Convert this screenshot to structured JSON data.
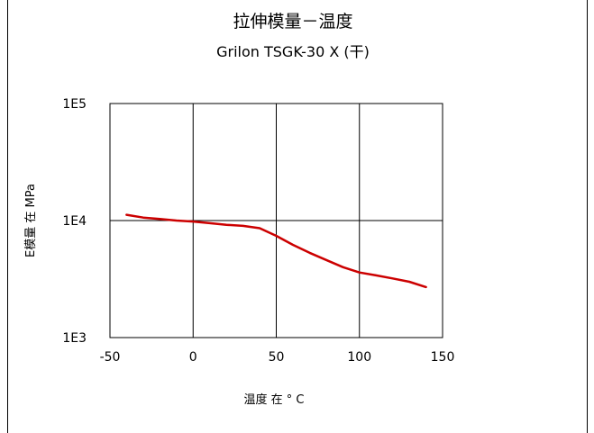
{
  "chart_data": {
    "type": "line",
    "title": "拉伸模量－温度",
    "subtitle": "Grilon TSGK-30 X (干)",
    "xlabel": "温度 在 ° C",
    "ylabel": "E模量 在  MPa",
    "xlim": [
      -50,
      150
    ],
    "ylim": [
      1000,
      100000
    ],
    "yscale": "log",
    "grid": true,
    "x_ticks": [
      {
        "value": -50,
        "label": "-50"
      },
      {
        "value": 0,
        "label": "0"
      },
      {
        "value": 50,
        "label": "50"
      },
      {
        "value": 100,
        "label": "100"
      },
      {
        "value": 150,
        "label": "150"
      }
    ],
    "y_ticks": [
      {
        "value": 1000,
        "label": "1E3"
      },
      {
        "value": 10000,
        "label": "1E4"
      },
      {
        "value": 100000,
        "label": "1E5"
      }
    ],
    "series": [
      {
        "color": "#cc0000",
        "x": [
          -40,
          -30,
          -20,
          -10,
          0,
          10,
          20,
          30,
          40,
          50,
          60,
          70,
          80,
          90,
          100,
          110,
          120,
          130,
          140
        ],
        "y": [
          11200,
          10600,
          10300,
          10000,
          9800,
          9500,
          9200,
          9000,
          8600,
          7400,
          6200,
          5300,
          4600,
          4000,
          3600,
          3400,
          3200,
          3000,
          2700
        ]
      }
    ]
  }
}
